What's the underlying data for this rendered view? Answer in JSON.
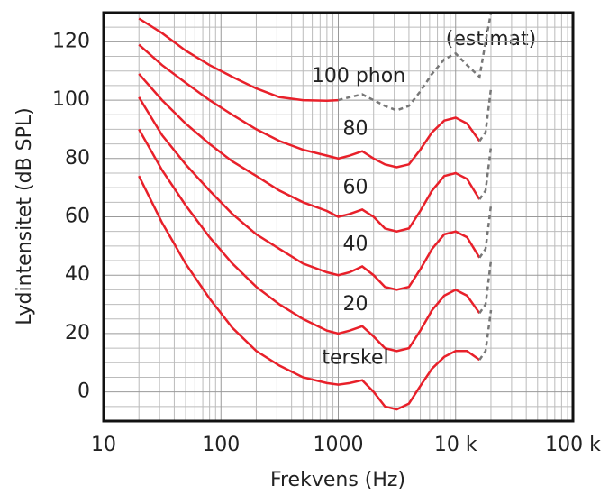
{
  "chart_data": {
    "type": "line",
    "x_label": "Frekvens (Hz)",
    "y_label": "Lydintensitet (dB SPL)",
    "annotation": "(estimat)",
    "x": [
      20,
      31.5,
      50,
      80,
      125,
      200,
      315,
      500,
      800,
      1000,
      1250,
      1600,
      2000,
      2500,
      3150,
      4000,
      5000,
      6300,
      8000,
      10000,
      12500,
      16000,
      18000,
      20000
    ],
    "xlim": [
      10,
      100000
    ],
    "xlog": true,
    "xticks": [
      10,
      100,
      1000,
      {
        "value": 10000,
        "label": "10 k"
      },
      {
        "value": 100000,
        "label": "100 k"
      }
    ],
    "ylim": [
      -10,
      130
    ],
    "yticks": [
      0,
      20,
      40,
      60,
      80,
      100,
      120
    ],
    "grid": true,
    "series": [
      {
        "name": "100 phon",
        "color": "#e8202a",
        "values": [
          128,
          123,
          117,
          112,
          108,
          104,
          101,
          100,
          99.8,
          100,
          null,
          null,
          null,
          null,
          null,
          null,
          null,
          null,
          null,
          null,
          null,
          null,
          null,
          null
        ]
      },
      {
        "color": "#777777",
        "style": "dashed",
        "values": [
          null,
          null,
          null,
          null,
          null,
          null,
          null,
          null,
          null,
          100,
          101,
          102,
          100,
          98,
          96.5,
          98,
          103,
          109,
          114,
          116,
          112,
          108,
          120,
          130
        ]
      },
      {
        "name": "80",
        "color": "#e8202a",
        "values": [
          119,
          112,
          106,
          100,
          95,
          90,
          86,
          83,
          81,
          80,
          81,
          82.5,
          80,
          78,
          77,
          78,
          83,
          89,
          93,
          94,
          92,
          86,
          null,
          null
        ]
      },
      {
        "color": "#777777",
        "style": "dashed",
        "values": [
          null,
          null,
          null,
          null,
          null,
          null,
          null,
          null,
          null,
          null,
          null,
          null,
          null,
          null,
          null,
          null,
          null,
          null,
          null,
          null,
          null,
          86,
          89,
          104
        ]
      },
      {
        "name": "60",
        "color": "#e8202a",
        "values": [
          109,
          100,
          92,
          85,
          79,
          74,
          69,
          65,
          62,
          60,
          61,
          62.5,
          60,
          56,
          55,
          56,
          62,
          69,
          74,
          75,
          73,
          66,
          null,
          null
        ]
      },
      {
        "color": "#777777",
        "style": "dashed",
        "values": [
          null,
          null,
          null,
          null,
          null,
          null,
          null,
          null,
          null,
          null,
          null,
          null,
          null,
          null,
          null,
          null,
          null,
          null,
          null,
          null,
          null,
          66,
          69,
          84
        ]
      },
      {
        "name": "40",
        "color": "#e8202a",
        "values": [
          101,
          88,
          78,
          69,
          61,
          54,
          49,
          44,
          41,
          40,
          41,
          43,
          40,
          36,
          35,
          36,
          42,
          49,
          54,
          55,
          53,
          46,
          null,
          null
        ]
      },
      {
        "color": "#777777",
        "style": "dashed",
        "values": [
          null,
          null,
          null,
          null,
          null,
          null,
          null,
          null,
          null,
          null,
          null,
          null,
          null,
          null,
          null,
          null,
          null,
          null,
          null,
          null,
          null,
          46,
          49,
          64
        ]
      },
      {
        "name": "20",
        "color": "#e8202a",
        "values": [
          90,
          76,
          64,
          53,
          44,
          36,
          30,
          25,
          21,
          20,
          21,
          22.5,
          19,
          15,
          14,
          15,
          21,
          28,
          33,
          35,
          33,
          27,
          null,
          null
        ]
      },
      {
        "color": "#777777",
        "style": "dashed",
        "values": [
          null,
          null,
          null,
          null,
          null,
          null,
          null,
          null,
          null,
          null,
          null,
          null,
          null,
          null,
          null,
          null,
          null,
          null,
          null,
          null,
          null,
          27,
          30,
          45
        ]
      },
      {
        "name": "terskel",
        "color": "#e8202a",
        "values": [
          74,
          58,
          44,
          32,
          22,
          14,
          9,
          5,
          3,
          2.5,
          3,
          4,
          0,
          -5,
          -6,
          -4,
          2,
          8,
          12,
          14,
          14,
          11,
          null,
          null
        ]
      },
      {
        "color": "#777777",
        "style": "dashed",
        "values": [
          null,
          null,
          null,
          null,
          null,
          null,
          null,
          null,
          null,
          null,
          null,
          null,
          null,
          null,
          null,
          null,
          null,
          null,
          null,
          null,
          null,
          11,
          14,
          28
        ]
      }
    ]
  }
}
